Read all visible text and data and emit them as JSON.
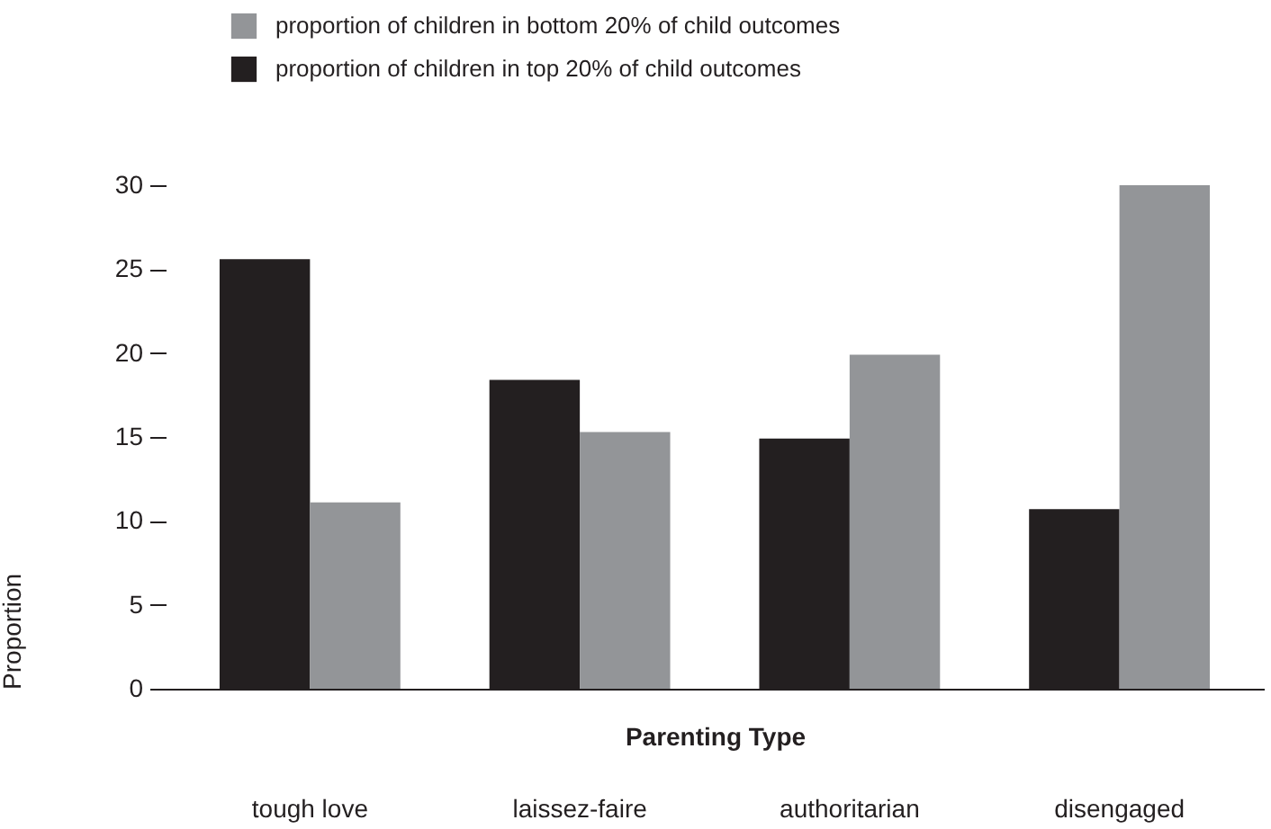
{
  "chart_data": {
    "type": "bar",
    "xlabel": "Parenting Type",
    "ylabel": "Proportion",
    "categories": [
      "tough love",
      "laissez-faire",
      "authoritarian",
      "disengaged"
    ],
    "series": [
      {
        "name": "proportion of children in top 20% of child outcomes",
        "color": "#231f20",
        "values": [
          25.6,
          18.4,
          14.9,
          10.7
        ]
      },
      {
        "name": "proportion of children in bottom 20% of child outcomes",
        "color": "#939598",
        "values": [
          11.1,
          15.3,
          19.9,
          30
        ]
      }
    ],
    "ylim": [
      0,
      30
    ],
    "yticks": [
      0,
      5,
      10,
      15,
      20,
      25,
      30
    ],
    "grid": false,
    "legend": "top left"
  }
}
